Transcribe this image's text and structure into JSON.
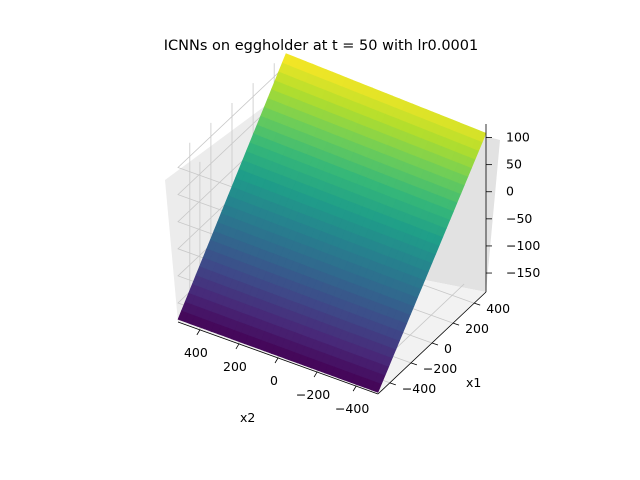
{
  "chart_data": {
    "type": "surface3d",
    "title": "ICNNs on eggholder at t = 50 with lr0.0001",
    "xlabel": "x1",
    "ylabel": "x2",
    "zlabel": "",
    "xlim": [
      -512,
      512
    ],
    "ylim": [
      -512,
      512
    ],
    "zlim": [
      -185,
      125
    ],
    "xticks": [
      -400,
      -200,
      0,
      200,
      400
    ],
    "yticks": [
      -400,
      -200,
      0,
      200,
      400
    ],
    "zticks": [
      -150,
      -100,
      -50,
      0,
      50,
      100
    ],
    "xtick_labels": [
      "−400",
      "−200",
      "0",
      "200",
      "400"
    ],
    "ytick_labels": [
      "−400",
      "−200",
      "0",
      "200",
      "400"
    ],
    "ztick_labels": [
      "−150",
      "−100",
      "−50",
      "0",
      "50",
      "100"
    ],
    "colormap": "viridis",
    "surface_corners": {
      "x1_-512_x2_512": -180,
      "x1_-512_x2_-512": -182,
      "x1_512_x2_512": 122,
      "x1_512_x2_-512": 108
    },
    "grid": true
  }
}
